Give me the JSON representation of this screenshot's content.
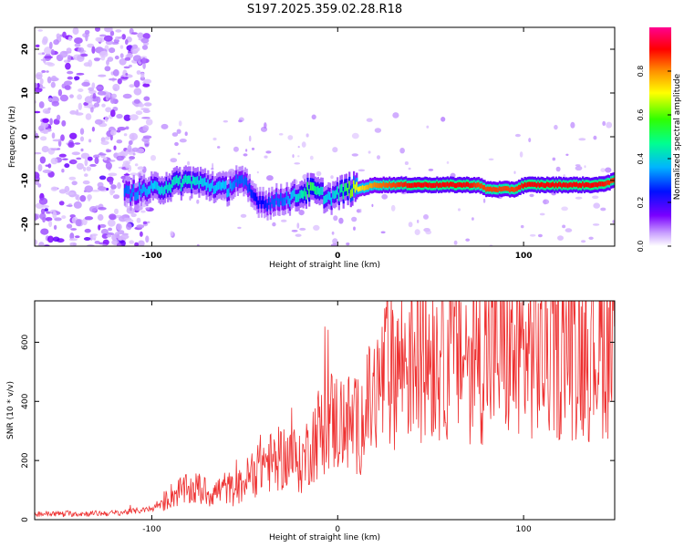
{
  "figure_title": "S197.2025.359.02.28.R18",
  "chart_data": [
    {
      "type": "heatmap",
      "title": "S197.2025.359.02.28.R18",
      "xlabel": "Height of straight line (km)",
      "ylabel": "Frequency (Hz)",
      "xlim": [
        -163,
        149
      ],
      "ylim": [
        -25,
        25
      ],
      "xticks": [
        -100,
        0,
        100
      ],
      "yticks": [
        20,
        10,
        0,
        -10,
        -20
      ],
      "colorbar": {
        "label": "Normalized spectral amplitude",
        "range": [
          0.0,
          1.0
        ],
        "ticks": [
          "0.0",
          "0.2",
          "0.4",
          "0.6",
          "0.8"
        ],
        "colors": [
          "#ffffff",
          "#b57cff",
          "#7a00ff",
          "#0000ff",
          "#00c8ff",
          "#00ff80",
          "#80ff00",
          "#ffff00",
          "#ff8000",
          "#ff0000",
          "#ff0080"
        ]
      },
      "ridge": {
        "description": "dominant frequency track",
        "x": [
          -115,
          -100,
          -90,
          -80,
          -70,
          -60,
          -55,
          -50,
          -45,
          -40,
          -35,
          -30,
          -25,
          -20,
          -15,
          -10,
          -5,
          0,
          5,
          10,
          20,
          30,
          40,
          50,
          60,
          70,
          75,
          80,
          90,
          95,
          100,
          110,
          120,
          130,
          140,
          149
        ],
        "y": [
          -13,
          -12,
          -11,
          -10,
          -11,
          -12,
          -10,
          -11,
          -14,
          -15,
          -15,
          -14,
          -14,
          -13,
          -12,
          -13,
          -14,
          -13,
          -12,
          -12,
          -11,
          -11,
          -11,
          -11,
          -11,
          -11,
          -11,
          -12,
          -12,
          -12,
          -11,
          -11,
          -11,
          -11,
          -11,
          -10
        ],
        "amplitude": [
          0.35,
          0.4,
          0.45,
          0.45,
          0.4,
          0.4,
          0.35,
          0.35,
          0.3,
          0.3,
          0.35,
          0.35,
          0.4,
          0.45,
          0.55,
          0.45,
          0.4,
          0.45,
          0.55,
          0.7,
          0.8,
          0.85,
          0.9,
          0.9,
          0.9,
          0.9,
          0.85,
          0.85,
          0.85,
          0.85,
          0.9,
          0.9,
          0.9,
          0.9,
          0.9,
          0.85
        ]
      }
    },
    {
      "type": "line",
      "title": "",
      "xlabel": "Height of straight line (km)",
      "ylabel": "SNR (10 * v/v)",
      "xlim": [
        -163,
        149
      ],
      "ylim": [
        0,
        740
      ],
      "xticks": [
        -100,
        0,
        100
      ],
      "yticks": [
        0,
        200,
        400,
        600
      ],
      "color": "#ee3030",
      "series": [
        {
          "name": "SNR envelope",
          "x": [
            -163,
            -140,
            -120,
            -100,
            -95,
            -90,
            -85,
            -80,
            -75,
            -70,
            -65,
            -60,
            -55,
            -50,
            -45,
            -40,
            -35,
            -30,
            -25,
            -20,
            -15,
            -10,
            -5,
            0,
            5,
            10,
            15,
            20,
            25,
            30,
            35,
            40,
            45,
            50,
            55,
            60,
            65,
            70,
            75,
            80,
            85,
            90,
            95,
            100,
            105,
            110,
            115,
            120,
            125,
            130,
            135,
            140,
            145,
            149
          ],
          "y": [
            20,
            20,
            22,
            35,
            55,
            80,
            95,
            100,
            105,
            90,
            95,
            110,
            95,
            130,
            160,
            200,
            190,
            210,
            220,
            180,
            250,
            300,
            340,
            330,
            330,
            310,
            360,
            420,
            480,
            520,
            540,
            550,
            570,
            575,
            560,
            580,
            570,
            560,
            550,
            560,
            560,
            570,
            540,
            560,
            580,
            560,
            580,
            570,
            580,
            590,
            570,
            600,
            590,
            600
          ]
        }
      ]
    }
  ]
}
